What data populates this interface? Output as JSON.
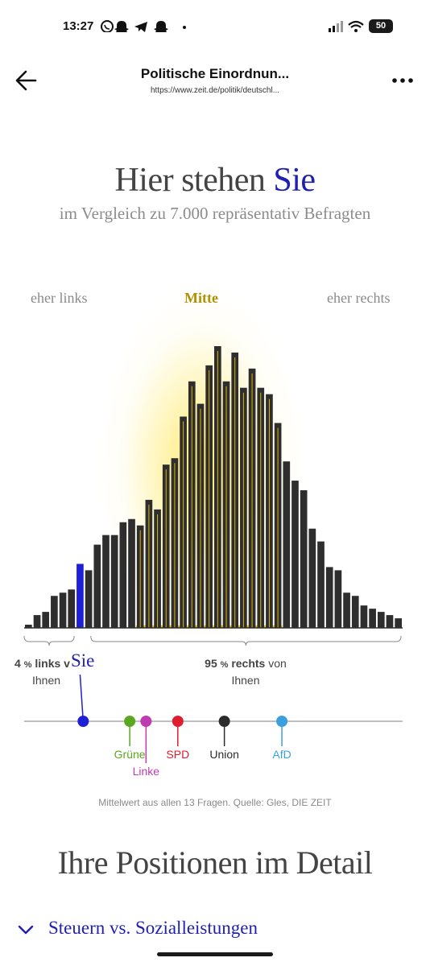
{
  "status_bar": {
    "time": "13:27",
    "battery": "50",
    "icons": [
      "whatsapp-icon",
      "snapchat-icon",
      "telegram-icon",
      "snapchat-icon",
      "dot-icon",
      "signal-icon",
      "wifi-icon",
      "battery-icon"
    ]
  },
  "app_bar": {
    "title": "Politische Einordnun...",
    "url": "https://www.zeit.de/politik/deutschl...",
    "back_icon": "arrow-left-icon",
    "menu_icon": "more-vertical-dots-icon"
  },
  "heading": {
    "title_prefix": "Hier stehen ",
    "title_accent": "Sie",
    "subtitle": "im Vergleich zu 7.000 repräsentativ Befragten"
  },
  "chart_data": {
    "type": "bar",
    "zone_labels": [
      "eher links",
      "Mitte",
      "eher rechts"
    ],
    "values": [
      1,
      4,
      5,
      10,
      11,
      12,
      20,
      18,
      26,
      29,
      29,
      33,
      34,
      32,
      40,
      37,
      51,
      53,
      66,
      77,
      70,
      82,
      88,
      77,
      86,
      75,
      81,
      75,
      73,
      64,
      52,
      46,
      43,
      31,
      27,
      19,
      18,
      11,
      10,
      7,
      6,
      5,
      4,
      3
    ],
    "user_bar_index": 6,
    "highlight_range": [
      13,
      29
    ],
    "colors": {
      "bars": "#2e2e2e",
      "user": "#1f1fd6",
      "mitte": "#b09000",
      "highlight": "#f0c400"
    }
  },
  "stats": {
    "left_value": "4",
    "left_text": "links v",
    "left_line2": "Ihnen",
    "you_label": "Sie",
    "right_value": "95",
    "right_text": "rechts",
    "right_text2": "von",
    "right_line2": "Ihnen",
    "percent_symbol": "%"
  },
  "parties": [
    {
      "name": "Grüne",
      "color": "#5aa820",
      "position": 0.279
    },
    {
      "name": "Linke",
      "color": "#c03ab4",
      "position": 0.322
    },
    {
      "name": "SPD",
      "color": "#e01c30",
      "position": 0.406
    },
    {
      "name": "Union",
      "color": "#2b2b2b",
      "position": 0.529
    },
    {
      "name": "AfD",
      "color": "#3a9fdc",
      "position": 0.681
    }
  ],
  "user_position": 0.156,
  "footer": {
    "source": "Mittelwert aus allen 13 Fragen. Quelle: Gles, DIE ZEIT",
    "section_title": "Ihre Positionen im Detail",
    "accordion_label": "Steuern vs. Sozialleistungen",
    "accordion_icon": "chevron-down-icon"
  }
}
